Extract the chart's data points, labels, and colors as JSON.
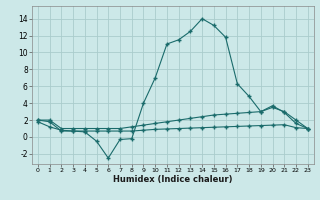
{
  "xlabel": "Humidex (Indice chaleur)",
  "xlim": [
    -0.5,
    23.5
  ],
  "ylim": [
    -3.2,
    15.5
  ],
  "yticks": [
    -2,
    0,
    2,
    4,
    6,
    8,
    10,
    12,
    14
  ],
  "xtick_labels": [
    "0",
    "1",
    "2",
    "3",
    "4",
    "5",
    "6",
    "7",
    "8",
    "9",
    "10",
    "11",
    "12",
    "13",
    "14",
    "15",
    "16",
    "17",
    "18",
    "19",
    "20",
    "21",
    "22",
    "23"
  ],
  "background_color": "#cce8e8",
  "grid_color": "#aacccc",
  "line_color": "#1a6b6b",
  "line1_y": [
    1.8,
    1.2,
    0.8,
    0.7,
    0.6,
    -0.5,
    -2.5,
    -0.3,
    -0.2,
    4.0,
    7.0,
    11.0,
    11.5,
    12.5,
    14.0,
    13.2,
    11.8,
    6.3,
    4.8,
    3.0,
    3.7,
    2.9,
    1.6,
    1.0
  ],
  "line2_y": [
    2.0,
    2.0,
    1.0,
    1.0,
    1.0,
    1.0,
    1.0,
    1.0,
    1.2,
    1.4,
    1.6,
    1.8,
    2.0,
    2.2,
    2.4,
    2.6,
    2.7,
    2.8,
    2.9,
    3.0,
    3.5,
    3.0,
    2.0,
    1.0
  ],
  "line3_y": [
    2.0,
    1.8,
    0.7,
    0.7,
    0.7,
    0.7,
    0.7,
    0.7,
    0.7,
    0.8,
    0.9,
    0.95,
    1.0,
    1.05,
    1.1,
    1.15,
    1.2,
    1.25,
    1.3,
    1.35,
    1.4,
    1.45,
    1.1,
    1.0
  ]
}
